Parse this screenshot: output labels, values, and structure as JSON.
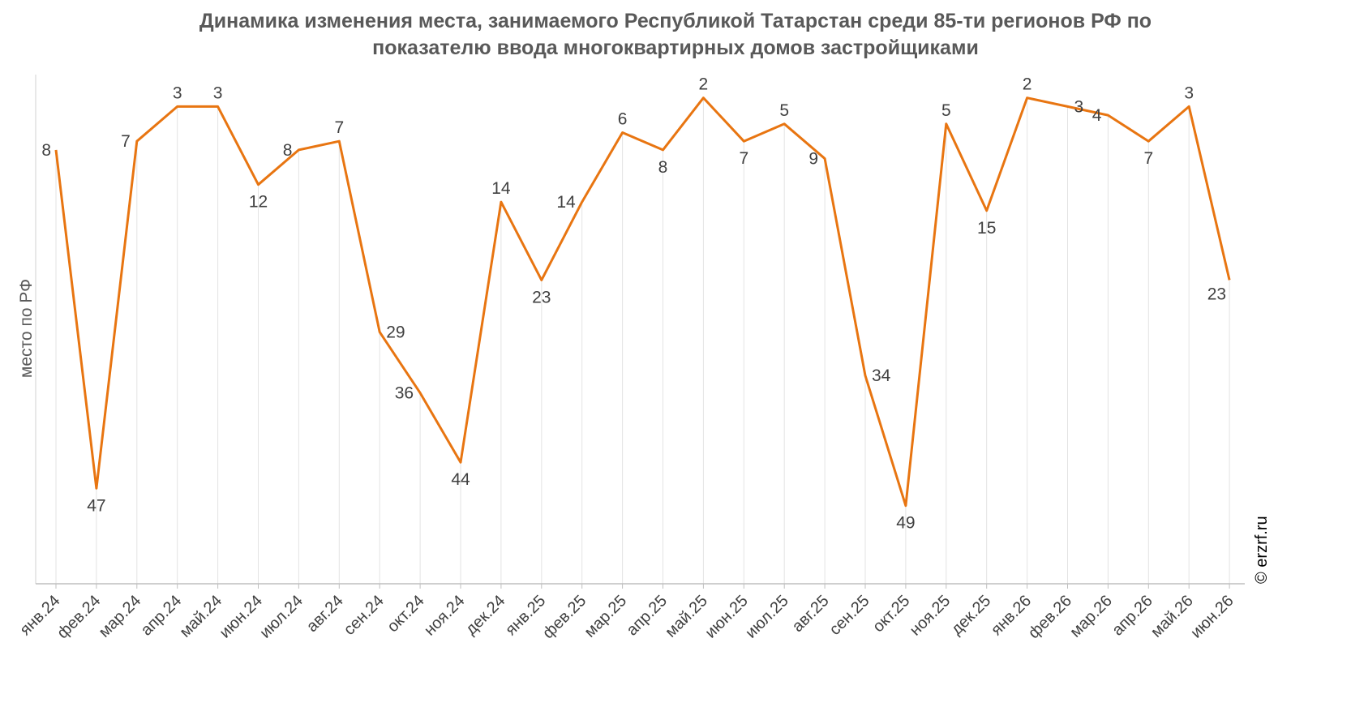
{
  "title_line1": "Динамика изменения места, занимаемого Республикой Татарстан среди 85-ти регионов РФ по",
  "title_line2": "показателю ввода многоквартирных домов застройщиками",
  "source_credit": "© erzrf.ru",
  "chart_data": {
    "type": "line",
    "title": "Динамика изменения места, занимаемого Республикой Татарстан среди 85-ти регионов РФ по показателю ввода многоквартирных домов застройщиками",
    "xlabel": "",
    "ylabel": "место по РФ",
    "y_inverted": true,
    "ylim": [
      58,
      1
    ],
    "grid": "vertical",
    "legend": "none",
    "line_color": "#E87511",
    "categories": [
      "янв.24",
      "фев.24",
      "мар.24",
      "апр.24",
      "май.24",
      "июн.24",
      "июл.24",
      "авг.24",
      "сен.24",
      "окт.24",
      "ноя.24",
      "дек.24",
      "янв.25",
      "фев.25",
      "мар.25",
      "апр.25",
      "май.25",
      "июн.25",
      "июл.25",
      "авг.25",
      "сен.25",
      "окт.25",
      "ноя.25",
      "дек.25",
      "янв.26",
      "фев.26",
      "мар.26",
      "апр.26",
      "май.26",
      "июн.26"
    ],
    "values": [
      8,
      47,
      7,
      3,
      3,
      12,
      8,
      7,
      29,
      36,
      44,
      14,
      23,
      14,
      6,
      8,
      2,
      7,
      5,
      9,
      34,
      49,
      5,
      15,
      2,
      3,
      4,
      7,
      3,
      23
    ]
  }
}
